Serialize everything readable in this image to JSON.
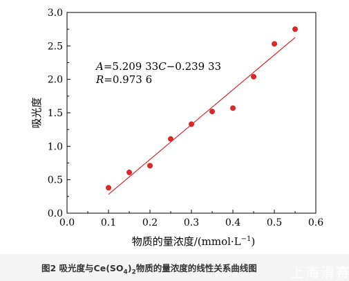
{
  "chart_data": {
    "type": "scatter",
    "xlabel": "物质的量浓度/(mmol·L",
    "xlabel_sup": "−1",
    "xlabel_end": ")",
    "ylabel": "吸光度",
    "xlim": [
      0.0,
      0.6
    ],
    "ylim": [
      0.0,
      3.0
    ],
    "x_ticks": [
      "0.0",
      "0.1",
      "0.2",
      "0.3",
      "0.4",
      "0.5",
      "0.6"
    ],
    "y_ticks": [
      "0.0",
      "0.5",
      "1.0",
      "1.5",
      "2.0",
      "2.5",
      "3.0"
    ],
    "grid": false,
    "series": [
      {
        "points": [
          {
            "x": 0.1,
            "y": 0.38
          },
          {
            "x": 0.15,
            "y": 0.61
          },
          {
            "x": 0.2,
            "y": 0.71
          },
          {
            "x": 0.25,
            "y": 1.11
          },
          {
            "x": 0.3,
            "y": 1.33
          },
          {
            "x": 0.35,
            "y": 1.52
          },
          {
            "x": 0.4,
            "y": 1.57
          },
          {
            "x": 0.45,
            "y": 2.04
          },
          {
            "x": 0.5,
            "y": 2.53
          },
          {
            "x": 0.55,
            "y": 2.75
          }
        ],
        "color": "#d42a2a"
      }
    ],
    "fit_line": {
      "slope": 5.20933,
      "intercept": -0.23933,
      "x_range": [
        0.1,
        0.55
      ],
      "color": "#d42a2a"
    },
    "annotations": {
      "equation_var": "A",
      "equation_rest": "=5.209 33",
      "equation_var2": "C",
      "equation_tail": "−0.239 33",
      "r_var": "R",
      "r_rest": "=0.973 6"
    }
  },
  "caption": {
    "prefix": "图2  吸光度与Ce(SO",
    "sub": "4",
    "mid": ")",
    "sub2": "2",
    "suffix": "物质的量浓度的线性关系曲线图"
  },
  "watermark": "上海滑赛"
}
